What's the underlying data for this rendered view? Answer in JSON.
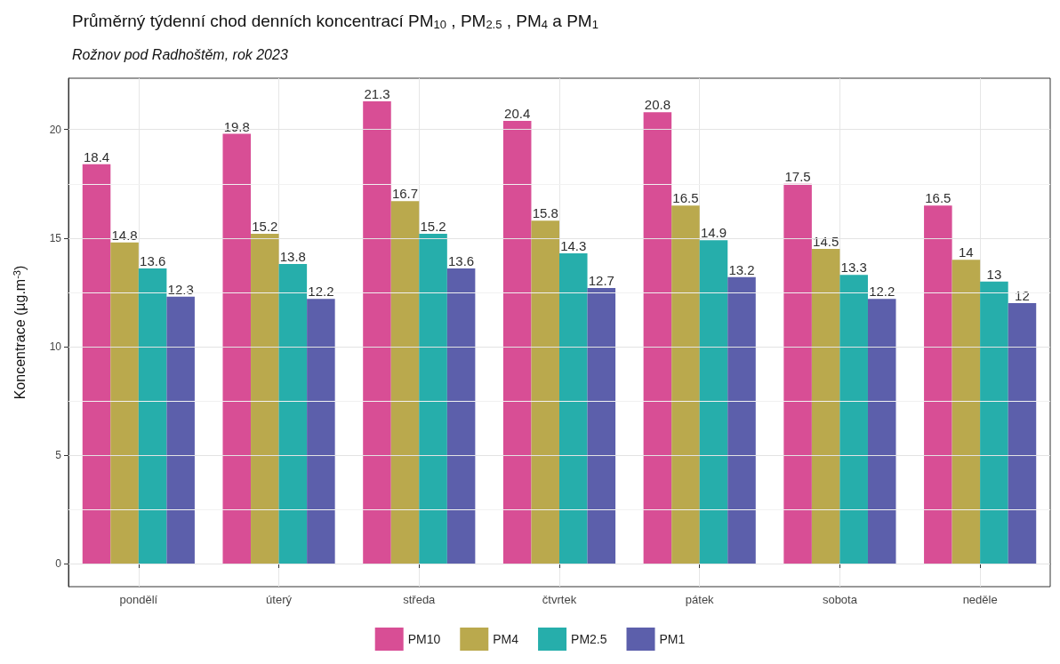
{
  "chart_data": {
    "type": "bar",
    "title": "Průměrný týdenní chod denních koncentrací PM$_{10}$ , PM$_{2.5}$ , PM$_{4}$ a PM$_{1}$",
    "subtitle": "Rožnov pod Radhoštěm, rok 2023",
    "ylabel": "Koncentrace (µg.m$^{-3}$)",
    "categories": [
      "pondělí",
      "úterý",
      "středa",
      "čtvrtek",
      "pátek",
      "sobota",
      "neděle"
    ],
    "series": [
      {
        "name": "PM10",
        "color": "#d6448f",
        "values": [
          18.4,
          19.8,
          21.3,
          20.4,
          20.8,
          17.5,
          16.5
        ]
      },
      {
        "name": "PM4",
        "color": "#b6a443",
        "values": [
          14.8,
          15.2,
          16.7,
          15.8,
          16.5,
          14.5,
          14
        ]
      },
      {
        "name": "PM2.5",
        "color": "#1aaaa6",
        "values": [
          13.6,
          13.8,
          15.2,
          14.3,
          14.9,
          13.3,
          13
        ]
      },
      {
        "name": "PM1",
        "color": "#5356a6",
        "values": [
          12.3,
          12.2,
          13.6,
          12.7,
          13.2,
          12.2,
          12
        ]
      }
    ],
    "ylim": [
      -1.065,
      22.365
    ],
    "yticks": [
      0,
      5,
      10,
      15,
      20
    ],
    "grid": true,
    "legend": "bottom",
    "data_labels": true
  }
}
